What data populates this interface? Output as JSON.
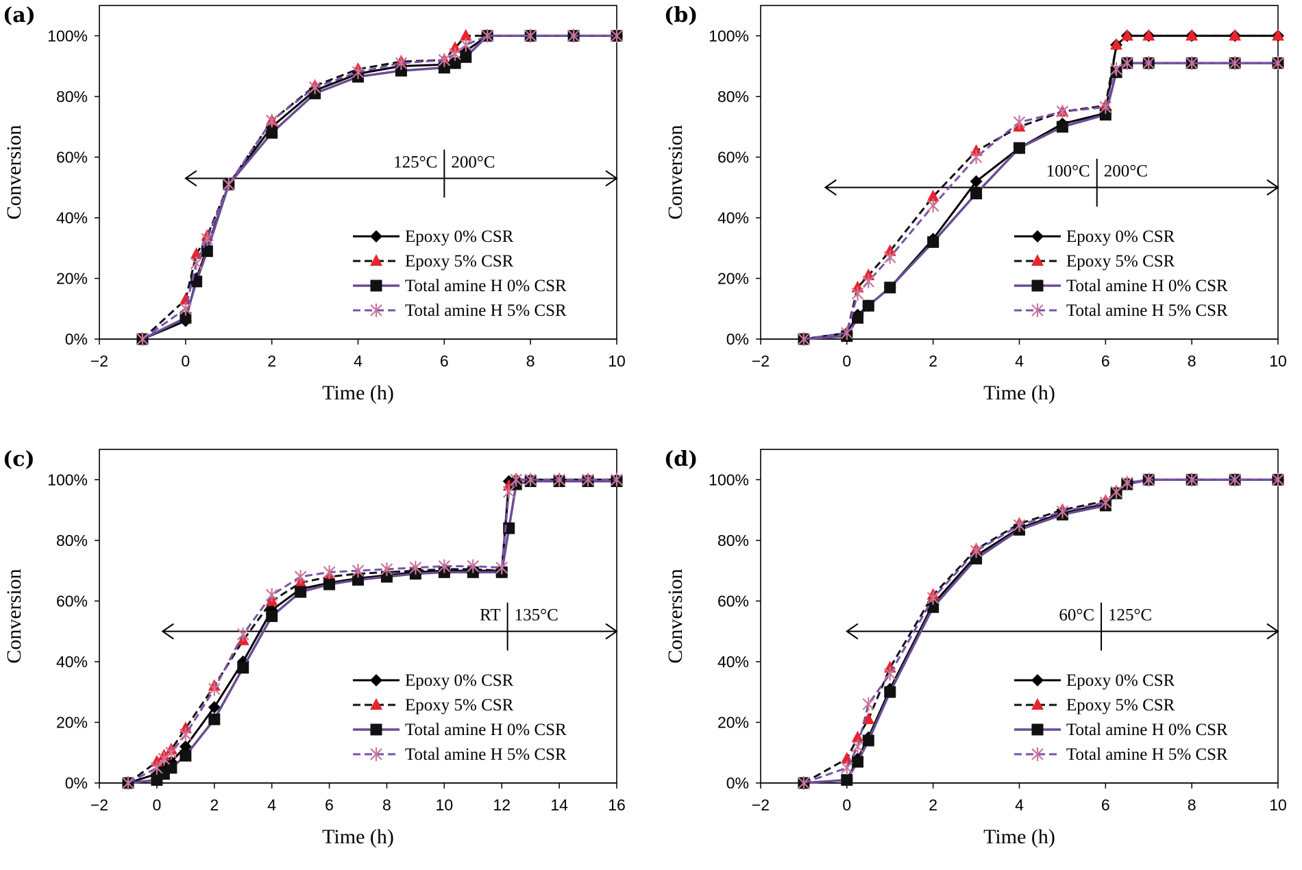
{
  "colors": {
    "epoxy0": "#000000",
    "epoxy5": "#111111",
    "epoxy5_marker": "#e8242c",
    "amine0": "#6a4c93",
    "amine0_marker": "#111111",
    "amine5": "#7a52a8",
    "amine5_marker": "#c9779a",
    "axis": "#000000"
  },
  "chart_data": [
    {
      "type": "line",
      "panel_label": "(a)",
      "xlabel": "Time (h)",
      "ylabel": "Conversion",
      "xlim": [
        -2,
        10
      ],
      "ylim": [
        0,
        1.1
      ],
      "xticks": [
        -2,
        0,
        2,
        4,
        6,
        8,
        10
      ],
      "xtick_labels": [
        "−2",
        "0",
        "2",
        "4",
        "6",
        "8",
        "10"
      ],
      "yticks": [
        0,
        0.2,
        0.4,
        0.6,
        0.8,
        1.0
      ],
      "ytick_labels": [
        "0%",
        "20%",
        "40%",
        "60%",
        "80%",
        "100%"
      ],
      "regions": {
        "labels": [
          "125°C",
          "200°C"
        ],
        "arrow_from": 0,
        "arrow_to": 10,
        "divider_x": 6,
        "arrow_y": 0.53
      },
      "legend_position": "bottom-right",
      "series": [
        {
          "name": "Epoxy 0% CSR",
          "x": [
            -1,
            0,
            0.25,
            0.5,
            1,
            2,
            3,
            4,
            5,
            6,
            6.25,
            6.5,
            7,
            8,
            9,
            10
          ],
          "y": [
            0,
            0.06,
            0.2,
            0.3,
            0.51,
            0.7,
            0.82,
            0.875,
            0.9,
            0.905,
            0.91,
            0.95,
            1.0,
            1.0,
            1.0,
            1.0
          ]
        },
        {
          "name": "Epoxy 5% CSR",
          "x": [
            -1,
            0,
            0.25,
            0.5,
            1,
            2,
            3,
            4,
            5,
            6,
            6.25,
            6.5,
            7,
            8,
            9,
            10
          ],
          "y": [
            0,
            0.13,
            0.28,
            0.34,
            0.51,
            0.72,
            0.835,
            0.89,
            0.915,
            0.92,
            0.96,
            1.0,
            1.0,
            1.0,
            1.0,
            1.0
          ]
        },
        {
          "name": "Total amine H 0% CSR",
          "x": [
            -1,
            0,
            0.25,
            0.5,
            1,
            2,
            3,
            4,
            5,
            6,
            6.25,
            6.5,
            7,
            8,
            9,
            10
          ],
          "y": [
            0,
            0.07,
            0.19,
            0.29,
            0.51,
            0.68,
            0.81,
            0.865,
            0.885,
            0.895,
            0.91,
            0.93,
            1.0,
            1.0,
            1.0,
            1.0
          ]
        },
        {
          "name": "Total amine H 5% CSR",
          "x": [
            -1,
            0,
            0.25,
            0.5,
            1,
            2,
            3,
            4,
            5,
            6,
            6.25,
            6.5,
            7,
            8,
            9,
            10
          ],
          "y": [
            0,
            0.1,
            0.25,
            0.33,
            0.51,
            0.72,
            0.83,
            0.88,
            0.91,
            0.92,
            0.94,
            0.97,
            1.0,
            1.0,
            1.0,
            1.0
          ]
        }
      ]
    },
    {
      "type": "line",
      "panel_label": "(b)",
      "xlabel": "Time (h)",
      "ylabel": "Conversion",
      "xlim": [
        -2,
        10
      ],
      "ylim": [
        0,
        1.1
      ],
      "xticks": [
        -2,
        0,
        2,
        4,
        6,
        8,
        10
      ],
      "xtick_labels": [
        "−2",
        "0",
        "2",
        "4",
        "6",
        "8",
        "10"
      ],
      "yticks": [
        0,
        0.2,
        0.4,
        0.6,
        0.8,
        1.0
      ],
      "ytick_labels": [
        "0%",
        "20%",
        "40%",
        "60%",
        "80%",
        "100%"
      ],
      "regions": {
        "labels": [
          "100°C",
          "200°C"
        ],
        "arrow_from": -0.5,
        "arrow_to": 10,
        "divider_x": 5.8,
        "arrow_y": 0.5
      },
      "legend_position": "bottom-right",
      "series": [
        {
          "name": "Epoxy 0% CSR",
          "x": [
            -1,
            0,
            0.25,
            0.5,
            1,
            2,
            3,
            4,
            5,
            6,
            6.25,
            6.5,
            7,
            8,
            9,
            10
          ],
          "y": [
            0,
            0.02,
            0.08,
            0.11,
            0.17,
            0.33,
            0.52,
            0.63,
            0.71,
            0.745,
            0.97,
            1.0,
            1.0,
            1.0,
            1.0,
            1.0
          ]
        },
        {
          "name": "Epoxy 5% CSR",
          "x": [
            -1,
            0,
            0.25,
            0.5,
            1,
            2,
            3,
            4,
            5,
            6,
            6.25,
            6.5,
            7,
            8,
            9,
            10
          ],
          "y": [
            0,
            0.02,
            0.17,
            0.21,
            0.29,
            0.47,
            0.62,
            0.7,
            0.75,
            0.77,
            0.97,
            1.0,
            1.0,
            1.0,
            1.0,
            1.0
          ]
        },
        {
          "name": "Total amine H 0% CSR",
          "x": [
            -1,
            0,
            0.25,
            0.5,
            1,
            2,
            3,
            4,
            5,
            6,
            6.25,
            6.5,
            7,
            8,
            9,
            10
          ],
          "y": [
            0,
            0.01,
            0.07,
            0.11,
            0.17,
            0.32,
            0.48,
            0.63,
            0.7,
            0.74,
            0.88,
            0.91,
            0.91,
            0.91,
            0.91,
            0.91
          ]
        },
        {
          "name": "Total amine H 5% CSR",
          "x": [
            -1,
            0,
            0.25,
            0.5,
            1,
            2,
            3,
            4,
            5,
            6,
            6.25,
            6.5,
            7,
            8,
            9,
            10
          ],
          "y": [
            0,
            0.02,
            0.15,
            0.19,
            0.27,
            0.44,
            0.6,
            0.715,
            0.75,
            0.765,
            0.89,
            0.91,
            0.91,
            0.91,
            0.91,
            0.91
          ]
        }
      ]
    },
    {
      "type": "line",
      "panel_label": "(c)",
      "xlabel": "Time (h)",
      "ylabel": "Conversion",
      "xlim": [
        -2,
        16
      ],
      "ylim": [
        0,
        1.1
      ],
      "xticks": [
        -2,
        0,
        2,
        4,
        6,
        8,
        10,
        12,
        14,
        16
      ],
      "xtick_labels": [
        "−2",
        "0",
        "2",
        "4",
        "6",
        "8",
        "10",
        "12",
        "14",
        "16"
      ],
      "yticks": [
        0,
        0.2,
        0.4,
        0.6,
        0.8,
        1.0
      ],
      "ytick_labels": [
        "0%",
        "20%",
        "40%",
        "60%",
        "80%",
        "100%"
      ],
      "regions": {
        "labels": [
          "RT",
          "135°C"
        ],
        "arrow_from": 0.2,
        "arrow_to": 16,
        "divider_x": 12.2,
        "arrow_y": 0.5
      },
      "legend_position": "bottom-right",
      "series": [
        {
          "name": "Epoxy 0% CSR",
          "x": [
            -1,
            0,
            0.25,
            0.5,
            1,
            2,
            3,
            4,
            5,
            6,
            7,
            8,
            9,
            10,
            11,
            12,
            12.25,
            12.5,
            13,
            14,
            15,
            16
          ],
          "y": [
            0,
            0.03,
            0.05,
            0.07,
            0.12,
            0.25,
            0.4,
            0.57,
            0.64,
            0.66,
            0.675,
            0.685,
            0.695,
            0.7,
            0.7,
            0.7,
            0.995,
            1.0,
            1.0,
            1.0,
            1.0,
            1.0
          ]
        },
        {
          "name": "Epoxy 5% CSR",
          "x": [
            -1,
            0,
            0.25,
            0.5,
            1,
            2,
            3,
            4,
            5,
            6,
            7,
            8,
            9,
            10,
            11,
            12,
            12.25,
            12.5,
            13,
            14,
            15,
            16
          ],
          "y": [
            0,
            0.07,
            0.09,
            0.11,
            0.18,
            0.32,
            0.47,
            0.6,
            0.66,
            0.68,
            0.69,
            0.695,
            0.7,
            0.705,
            0.705,
            0.7,
            0.98,
            1.0,
            1.0,
            1.0,
            1.0,
            1.0
          ]
        },
        {
          "name": "Total amine H 0% CSR",
          "x": [
            -1,
            0,
            0.25,
            0.5,
            1,
            2,
            3,
            4,
            5,
            6,
            7,
            8,
            9,
            10,
            11,
            12,
            12.25,
            12.5,
            13,
            14,
            15,
            16
          ],
          "y": [
            0,
            0.01,
            0.03,
            0.05,
            0.09,
            0.21,
            0.38,
            0.55,
            0.63,
            0.655,
            0.67,
            0.68,
            0.69,
            0.695,
            0.695,
            0.695,
            0.84,
            0.985,
            0.995,
            0.995,
            0.995,
            0.995
          ]
        },
        {
          "name": "Total amine H 5% CSR",
          "x": [
            -1,
            0,
            0.25,
            0.5,
            1,
            2,
            3,
            4,
            5,
            6,
            7,
            8,
            9,
            10,
            11,
            12,
            12.25,
            12.5,
            13,
            14,
            15,
            16
          ],
          "y": [
            0,
            0.05,
            0.08,
            0.1,
            0.16,
            0.31,
            0.49,
            0.62,
            0.68,
            0.695,
            0.7,
            0.705,
            0.71,
            0.715,
            0.715,
            0.71,
            0.96,
            1.0,
            1.0,
            1.0,
            1.0,
            1.0
          ]
        }
      ]
    },
    {
      "type": "line",
      "panel_label": "(d)",
      "xlabel": "Time (h)",
      "ylabel": "Conversion",
      "xlim": [
        -2,
        10
      ],
      "ylim": [
        0,
        1.1
      ],
      "xticks": [
        -2,
        0,
        2,
        4,
        6,
        8,
        10
      ],
      "xtick_labels": [
        "−2",
        "0",
        "2",
        "4",
        "6",
        "8",
        "10"
      ],
      "yticks": [
        0,
        0.2,
        0.4,
        0.6,
        0.8,
        1.0
      ],
      "ytick_labels": [
        "0%",
        "20%",
        "40%",
        "60%",
        "80%",
        "100%"
      ],
      "regions": {
        "labels": [
          "60°C",
          "125°C"
        ],
        "arrow_from": 0,
        "arrow_to": 10,
        "divider_x": 5.9,
        "arrow_y": 0.5
      },
      "legend_position": "bottom-right",
      "series": [
        {
          "name": "Epoxy 0% CSR",
          "x": [
            -1,
            0,
            0.25,
            0.5,
            1,
            2,
            3,
            4,
            5,
            6,
            6.25,
            6.5,
            7,
            8,
            9,
            10
          ],
          "y": [
            0,
            0.01,
            0.08,
            0.15,
            0.31,
            0.59,
            0.75,
            0.84,
            0.89,
            0.92,
            0.96,
            0.985,
            1.0,
            1.0,
            1.0,
            1.0
          ]
        },
        {
          "name": "Epoxy 5% CSR",
          "x": [
            -1,
            0,
            0.25,
            0.5,
            1,
            2,
            3,
            4,
            5,
            6,
            6.25,
            6.5,
            7,
            8,
            9,
            10
          ],
          "y": [
            0,
            0.08,
            0.15,
            0.21,
            0.38,
            0.62,
            0.77,
            0.855,
            0.9,
            0.93,
            0.96,
            0.99,
            1.0,
            1.0,
            1.0,
            1.0
          ]
        },
        {
          "name": "Total amine H 0% CSR",
          "x": [
            -1,
            0,
            0.25,
            0.5,
            1,
            2,
            3,
            4,
            5,
            6,
            6.25,
            6.5,
            7,
            8,
            9,
            10
          ],
          "y": [
            0,
            0.01,
            0.07,
            0.14,
            0.3,
            0.58,
            0.74,
            0.835,
            0.885,
            0.915,
            0.955,
            0.985,
            1.0,
            1.0,
            1.0,
            1.0
          ]
        },
        {
          "name": "Total amine H 5% CSR",
          "x": [
            -1,
            0,
            0.25,
            0.5,
            1,
            2,
            3,
            4,
            5,
            6,
            6.25,
            6.5,
            7,
            8,
            9,
            10
          ],
          "y": [
            0,
            0.05,
            0.12,
            0.26,
            0.36,
            0.61,
            0.765,
            0.85,
            0.895,
            0.925,
            0.96,
            0.99,
            1.0,
            1.0,
            1.0,
            1.0
          ]
        }
      ]
    }
  ]
}
